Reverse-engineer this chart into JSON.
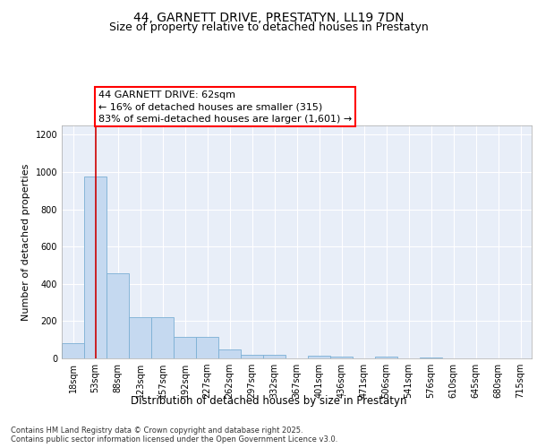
{
  "title": "44, GARNETT DRIVE, PRESTATYN, LL19 7DN",
  "subtitle": "Size of property relative to detached houses in Prestatyn",
  "xlabel": "Distribution of detached houses by size in Prestatyn",
  "ylabel": "Number of detached properties",
  "bar_labels": [
    "18sqm",
    "53sqm",
    "88sqm",
    "123sqm",
    "157sqm",
    "192sqm",
    "227sqm",
    "262sqm",
    "297sqm",
    "332sqm",
    "367sqm",
    "401sqm",
    "436sqm",
    "471sqm",
    "506sqm",
    "541sqm",
    "576sqm",
    "610sqm",
    "645sqm",
    "680sqm",
    "715sqm"
  ],
  "bar_values": [
    80,
    975,
    455,
    220,
    220,
    115,
    115,
    50,
    20,
    20,
    0,
    15,
    10,
    0,
    10,
    0,
    5,
    0,
    0,
    0,
    0
  ],
  "bar_color": "#c5d9f0",
  "bar_edge_color": "#7bafd4",
  "red_line_x": 1,
  "annotation_text": "44 GARNETT DRIVE: 62sqm\n← 16% of detached houses are smaller (315)\n83% of semi-detached houses are larger (1,601) →",
  "ylim": [
    0,
    1250
  ],
  "yticks": [
    0,
    200,
    400,
    600,
    800,
    1000,
    1200
  ],
  "footer": "Contains HM Land Registry data © Crown copyright and database right 2025.\nContains public sector information licensed under the Open Government Licence v3.0.",
  "bg_color": "#e8eef8",
  "title_fontsize": 10,
  "subtitle_fontsize": 9,
  "axis_label_fontsize": 8,
  "tick_fontsize": 7,
  "annotation_fontsize": 8,
  "footer_fontsize": 6
}
